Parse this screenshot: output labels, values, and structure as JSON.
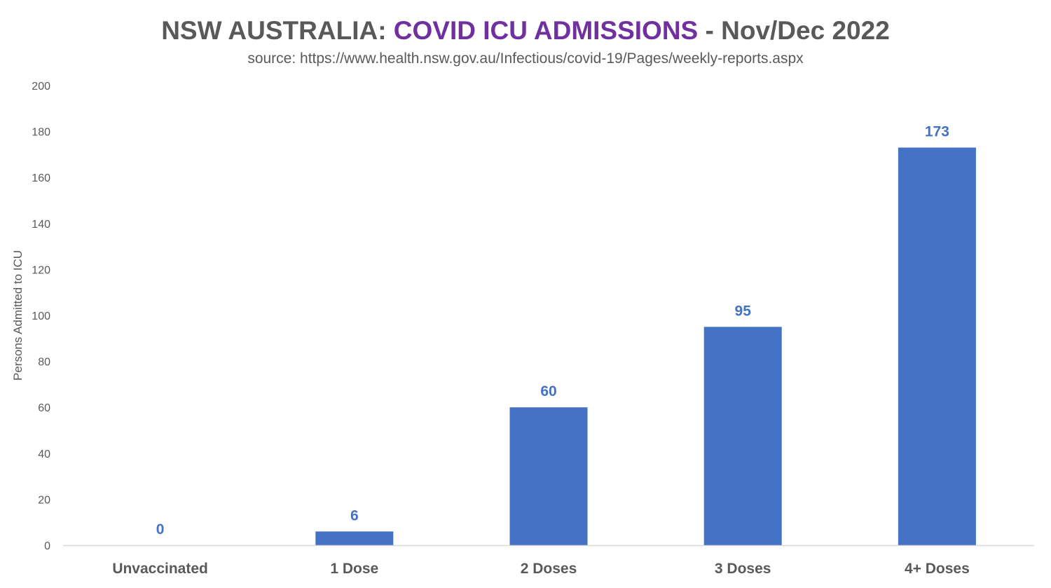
{
  "chart_data": {
    "type": "bar",
    "title": {
      "part1": "NSW AUSTRALIA: ",
      "part2": "COVID ICU ADMISSIONS",
      "part3": " - Nov/Dec 2022"
    },
    "subtitle": "source: https://www.health.nsw.gov.au/Infectious/covid-19/Pages/weekly-reports.aspx",
    "xlabel": "",
    "ylabel": "Persons Admitted to ICU",
    "categories": [
      "Unvaccinated",
      "1 Dose",
      "2 Doses",
      "3 Doses",
      "4+ Doses"
    ],
    "values": [
      0,
      6,
      60,
      95,
      173
    ],
    "data_labels": [
      "0",
      "6",
      "60",
      "95",
      "173"
    ],
    "ylim": [
      0,
      200
    ],
    "y_ticks": [
      0,
      20,
      40,
      60,
      80,
      100,
      120,
      140,
      160,
      180,
      200
    ],
    "y_tick_labels": [
      "0",
      "20",
      "40",
      "60",
      "80",
      "100",
      "120",
      "140",
      "160",
      "180",
      "200"
    ],
    "grid": false,
    "legend": "none",
    "colors": {
      "bar": "#4472C4",
      "data_label": "#4472C4",
      "title_main": "#595959",
      "title_accent": "#7030A0",
      "text": "#595959",
      "axis_line": "#D9D9D9"
    }
  }
}
